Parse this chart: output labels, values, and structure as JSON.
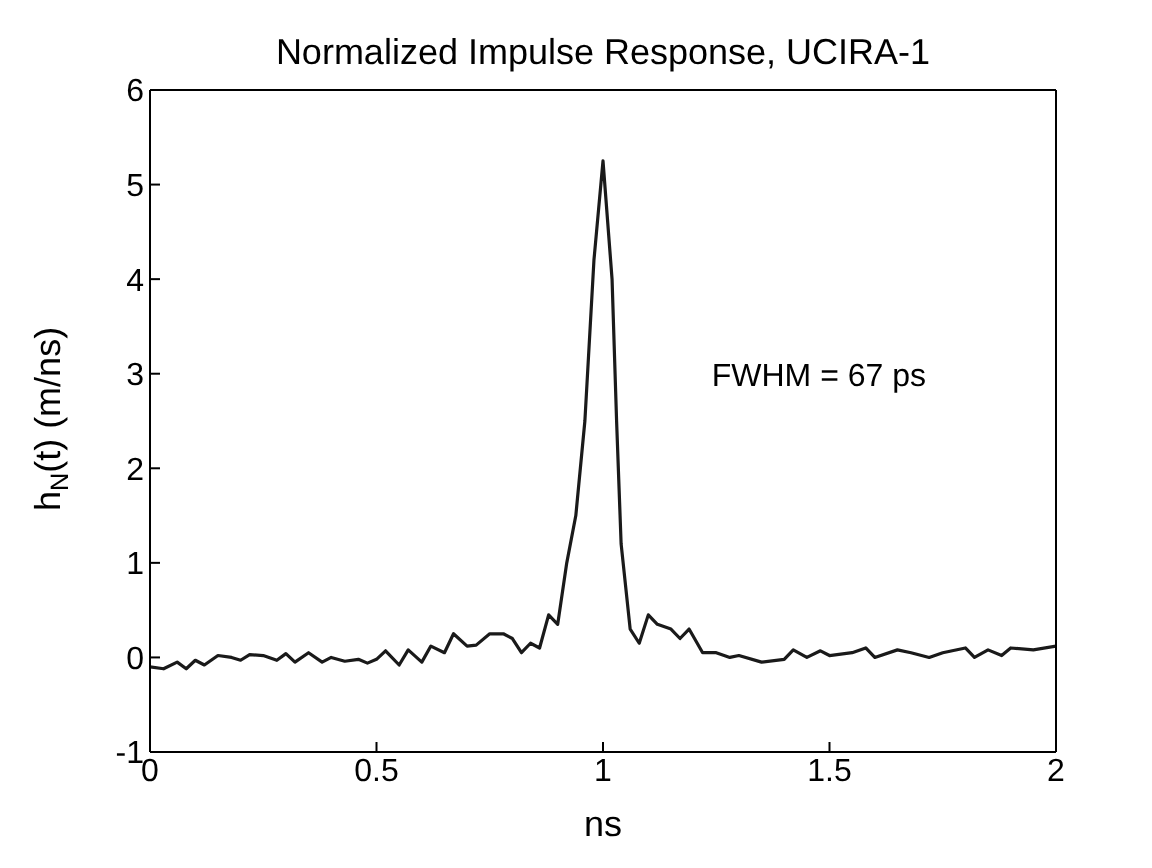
{
  "chart_data": {
    "type": "line",
    "title": "Normalized Impulse Response, UCIRA-1",
    "xlabel": "ns",
    "ylabel": "h$_{N}$(t) (m/ns)",
    "annotations": [
      "FWHM = 67 ps"
    ],
    "x": [
      0,
      0.03,
      0.06,
      0.08,
      0.1,
      0.12,
      0.15,
      0.18,
      0.2,
      0.22,
      0.25,
      0.28,
      0.3,
      0.32,
      0.35,
      0.38,
      0.4,
      0.43,
      0.46,
      0.48,
      0.5,
      0.52,
      0.55,
      0.57,
      0.6,
      0.62,
      0.65,
      0.67,
      0.7,
      0.72,
      0.75,
      0.78,
      0.8,
      0.82,
      0.84,
      0.86,
      0.88,
      0.9,
      0.92,
      0.94,
      0.96,
      0.98,
      1.0,
      1.02,
      1.03,
      1.04,
      1.06,
      1.08,
      1.1,
      1.12,
      1.15,
      1.17,
      1.19,
      1.22,
      1.25,
      1.28,
      1.3,
      1.35,
      1.4,
      1.42,
      1.45,
      1.48,
      1.5,
      1.55,
      1.58,
      1.6,
      1.65,
      1.68,
      1.72,
      1.75,
      1.8,
      1.82,
      1.85,
      1.88,
      1.9,
      1.95,
      2.0
    ],
    "series": [
      {
        "color": "#1a1a1a",
        "values": [
          -0.1,
          -0.12,
          -0.05,
          -0.12,
          -0.03,
          -0.08,
          0.02,
          0,
          -0.03,
          0.03,
          0.02,
          -0.03,
          0.04,
          -0.05,
          0.05,
          -0.05,
          0,
          -0.04,
          -0.02,
          -0.06,
          -0.02,
          0.07,
          -0.08,
          0.08,
          -0.05,
          0.12,
          0.05,
          0.25,
          0.12,
          0.13,
          0.25,
          0.25,
          0.2,
          0.05,
          0.15,
          0.1,
          0.45,
          0.35,
          1.0,
          1.5,
          2.5,
          4.2,
          5.25,
          4.0,
          2.5,
          1.2,
          0.3,
          0.15,
          0.45,
          0.35,
          0.3,
          0.2,
          0.3,
          0.05,
          0.05,
          0,
          0.02,
          -0.05,
          -0.02,
          0.08,
          0,
          0.07,
          0.02,
          0.05,
          0.1,
          0,
          0.08,
          0.05,
          0,
          0.05,
          0.1,
          0,
          0.08,
          0.02,
          0.1,
          0.08,
          0.12
        ]
      }
    ],
    "xlim": [
      0,
      2
    ],
    "xticks": [
      0,
      0.5,
      1,
      1.5,
      2
    ],
    "ylim": [
      -1,
      6
    ],
    "yticks": [
      -1,
      0,
      1,
      2,
      3,
      4,
      5,
      6
    ],
    "grid": false,
    "legend": false,
    "marker": "none",
    "line_style": "solid"
  }
}
